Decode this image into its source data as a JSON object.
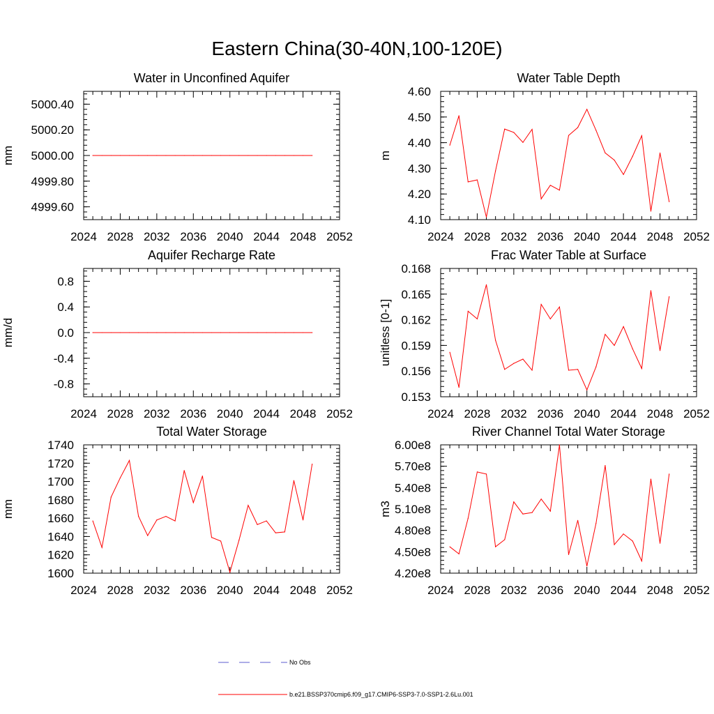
{
  "figure_title": "Eastern China(30-40N,100-120E)",
  "colors": {
    "model": "#ff0000",
    "obs": "#5b5bcf",
    "axes": "#000000"
  },
  "legend": [
    {
      "label": "No Obs",
      "style": "dashed",
      "color": "#5b5bcf"
    },
    {
      "label": "b.e21.BSSP370cmip6.f09_g17.CMIP6-SSP3-7.0-SSP1-2.6Lu.001",
      "style": "solid",
      "color": "#ff0000"
    }
  ],
  "chart_data": [
    {
      "type": "line",
      "title": "Water in Unconfined Aquifer",
      "ylabel": "mm",
      "xlim": [
        2024,
        2052
      ],
      "xticks": [
        2024,
        2028,
        2032,
        2036,
        2040,
        2044,
        2048,
        2052
      ],
      "ylim": [
        4999.5,
        5000.5
      ],
      "yticks": [
        4999.6,
        4999.8,
        5000.0,
        5000.2,
        5000.4
      ],
      "ytick_labels": [
        "4999.60",
        "4999.80",
        "5000.00",
        "5000.20",
        "5000.40"
      ],
      "series": [
        {
          "x": [
            2025,
            2026,
            2027,
            2028,
            2029,
            2030,
            2031,
            2032,
            2033,
            2034,
            2035,
            2036,
            2037,
            2038,
            2039,
            2040,
            2041,
            2042,
            2043,
            2044,
            2045,
            2046,
            2047,
            2048,
            2049
          ],
          "values": [
            5000,
            5000,
            5000,
            5000,
            5000,
            5000,
            5000,
            5000,
            5000,
            5000,
            5000,
            5000,
            5000,
            5000,
            5000,
            5000,
            5000,
            5000,
            5000,
            5000,
            5000,
            5000,
            5000,
            5000,
            5000
          ]
        }
      ]
    },
    {
      "type": "line",
      "title": "Water Table Depth",
      "ylabel": "m",
      "xlim": [
        2024,
        2052
      ],
      "xticks": [
        2024,
        2028,
        2032,
        2036,
        2040,
        2044,
        2048,
        2052
      ],
      "ylim": [
        4.1,
        4.6
      ],
      "yticks": [
        4.1,
        4.2,
        4.3,
        4.4,
        4.5,
        4.6
      ],
      "ytick_labels": [
        "4.10",
        "4.20",
        "4.30",
        "4.40",
        "4.50",
        "4.60"
      ],
      "series": [
        {
          "x": [
            2025,
            2026,
            2027,
            2028,
            2029,
            2030,
            2031,
            2032,
            2033,
            2034,
            2035,
            2036,
            2037,
            2038,
            2039,
            2040,
            2041,
            2042,
            2043,
            2044,
            2045,
            2046,
            2047,
            2048,
            2049
          ],
          "values": [
            4.39,
            4.505,
            4.247,
            4.255,
            4.11,
            4.29,
            4.453,
            4.44,
            4.401,
            4.452,
            4.181,
            4.234,
            4.215,
            4.428,
            4.459,
            4.53,
            4.448,
            4.36,
            4.332,
            4.276,
            4.347,
            4.427,
            4.133,
            4.36,
            4.17
          ]
        }
      ]
    },
    {
      "type": "line",
      "title": "Aquifer Recharge Rate",
      "ylabel": "mm/d",
      "xlim": [
        2024,
        2052
      ],
      "xticks": [
        2024,
        2028,
        2032,
        2036,
        2040,
        2044,
        2048,
        2052
      ],
      "ylim": [
        -1.0,
        1.0
      ],
      "yticks": [
        -0.8,
        -0.4,
        0.0,
        0.4,
        0.8
      ],
      "ytick_labels": [
        "-0.8",
        "-0.4",
        "0.0",
        "0.4",
        "0.8"
      ],
      "series": [
        {
          "x": [
            2025,
            2026,
            2027,
            2028,
            2029,
            2030,
            2031,
            2032,
            2033,
            2034,
            2035,
            2036,
            2037,
            2038,
            2039,
            2040,
            2041,
            2042,
            2043,
            2044,
            2045,
            2046,
            2047,
            2048,
            2049
          ],
          "values": [
            0,
            0,
            0,
            0,
            0,
            0,
            0,
            0,
            0,
            0,
            0,
            0,
            0,
            0,
            0,
            0,
            0,
            0,
            0,
            0,
            0,
            0,
            0,
            0,
            0
          ]
        }
      ]
    },
    {
      "type": "line",
      "title": "Frac Water Table at Surface",
      "ylabel": "unitless [0-1]",
      "xlim": [
        2024,
        2052
      ],
      "xticks": [
        2024,
        2028,
        2032,
        2036,
        2040,
        2044,
        2048,
        2052
      ],
      "ylim": [
        0.153,
        0.168
      ],
      "yticks": [
        0.153,
        0.156,
        0.159,
        0.162,
        0.165,
        0.168
      ],
      "ytick_labels": [
        "0.153",
        "0.156",
        "0.159",
        "0.162",
        "0.165",
        "0.168"
      ],
      "series": [
        {
          "x": [
            2025,
            2026,
            2027,
            2028,
            2029,
            2030,
            2031,
            2032,
            2033,
            2034,
            2035,
            2036,
            2037,
            2038,
            2039,
            2040,
            2041,
            2042,
            2043,
            2044,
            2045,
            2046,
            2047,
            2048,
            2049
          ],
          "values": [
            0.1582,
            0.1541,
            0.163,
            0.1621,
            0.1661,
            0.1596,
            0.1562,
            0.1569,
            0.1574,
            0.1561,
            0.1638,
            0.1621,
            0.1635,
            0.1561,
            0.1562,
            0.1538,
            0.1565,
            0.1603,
            0.159,
            0.1612,
            0.1586,
            0.1563,
            0.1654,
            0.1584,
            0.1647
          ]
        }
      ]
    },
    {
      "type": "line",
      "title": "Total Water Storage",
      "ylabel": "mm",
      "xlim": [
        2024,
        2052
      ],
      "xticks": [
        2024,
        2028,
        2032,
        2036,
        2040,
        2044,
        2048,
        2052
      ],
      "ylim": [
        1600,
        1740
      ],
      "yticks": [
        1600,
        1620,
        1640,
        1660,
        1680,
        1700,
        1720,
        1740
      ],
      "ytick_labels": [
        "1600",
        "1620",
        "1640",
        "1660",
        "1680",
        "1700",
        "1720",
        "1740"
      ],
      "series": [
        {
          "x": [
            2025,
            2026,
            2027,
            2028,
            2029,
            2030,
            2031,
            2032,
            2033,
            2034,
            2035,
            2036,
            2037,
            2038,
            2039,
            2040,
            2041,
            2042,
            2043,
            2044,
            2045,
            2046,
            2047,
            2048,
            2049
          ],
          "values": [
            1657,
            1628,
            1683,
            1704,
            1723,
            1662,
            1641,
            1658,
            1662,
            1657,
            1712,
            1677,
            1706,
            1639,
            1635,
            1601,
            1636,
            1674,
            1653,
            1657,
            1644,
            1645,
            1701,
            1658,
            1719
          ]
        }
      ]
    },
    {
      "type": "line",
      "title": "River Channel Total Water Storage",
      "ylabel": "m3",
      "xlim": [
        2024,
        2052
      ],
      "xticks": [
        2024,
        2028,
        2032,
        2036,
        2040,
        2044,
        2048,
        2052
      ],
      "ylim": [
        420000000,
        600000000
      ],
      "yticks": [
        420000000,
        450000000,
        480000000,
        510000000,
        540000000,
        570000000,
        600000000
      ],
      "ytick_labels": [
        "4.20e8",
        "4.50e8",
        "4.80e8",
        "5.10e8",
        "5.40e8",
        "5.70e8",
        "6.00e8"
      ],
      "series": [
        {
          "x": [
            2025,
            2026,
            2027,
            2028,
            2029,
            2030,
            2031,
            2032,
            2033,
            2034,
            2035,
            2036,
            2037,
            2038,
            2039,
            2040,
            2041,
            2042,
            2043,
            2044,
            2045,
            2046,
            2047,
            2048,
            2049
          ],
          "values": [
            457000000,
            447000000,
            497000000,
            562000000,
            559000000,
            457000000,
            467000000,
            520000000,
            503000000,
            505000000,
            524000000,
            507000000,
            600000000,
            446000000,
            494000000,
            430000000,
            490000000,
            571000000,
            460000000,
            475000000,
            465000000,
            437000000,
            552000000,
            462000000,
            559000000
          ]
        }
      ]
    }
  ]
}
